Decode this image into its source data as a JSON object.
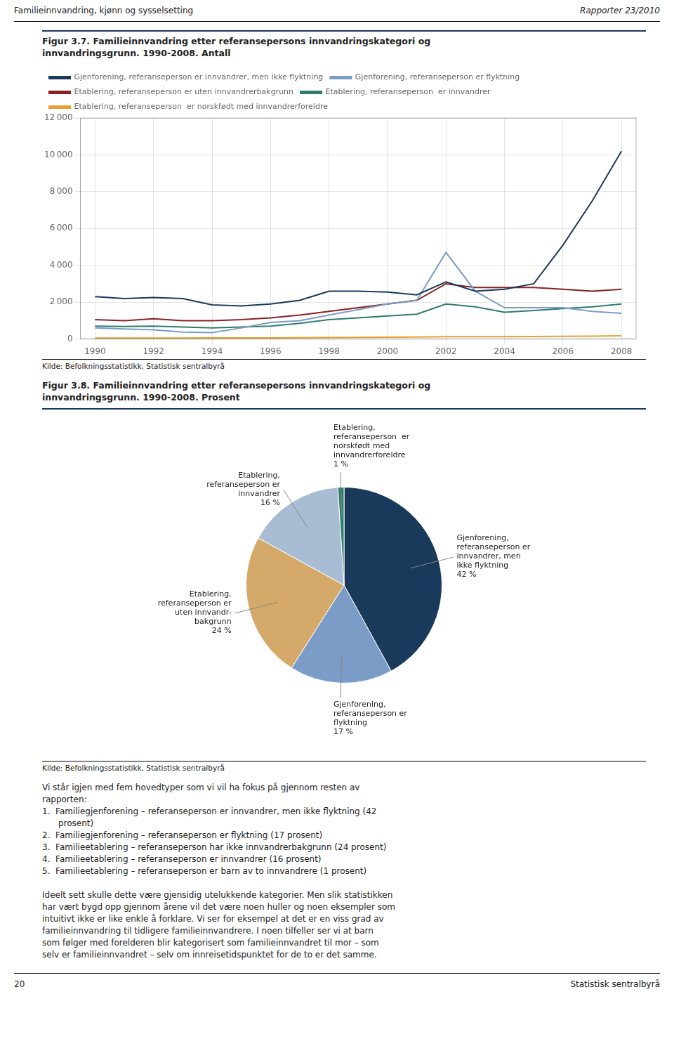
{
  "chart_data": [
    {
      "type": "line",
      "title": "Figur 3.7. Familieinnvandring etter referansepersons innvandringskategori og\ninnvandringsgrunn. 1990-2008. Antall",
      "x": [
        1990,
        1991,
        1992,
        1993,
        1994,
        1995,
        1996,
        1997,
        1998,
        1999,
        2000,
        2001,
        2002,
        2003,
        2004,
        2005,
        2006,
        2007,
        2008
      ],
      "series": [
        {
          "name": "Gjenforening, referanseperson er innvandrer, men ikke flyktning",
          "color": "#1a3a5c",
          "values": [
            2300,
            2200,
            2250,
            2200,
            1850,
            1800,
            1900,
            2100,
            2600,
            2600,
            2550,
            2400,
            3100,
            2600,
            2700,
            3000,
            5100,
            7500,
            10200
          ]
        },
        {
          "name": "Gjenforening, referanseperson er flyktning",
          "color": "#7b9cc7",
          "values": [
            600,
            550,
            500,
            380,
            350,
            600,
            900,
            1000,
            1300,
            1600,
            1900,
            2100,
            4700,
            2600,
            1700,
            1700,
            1700,
            1500,
            1400
          ]
        },
        {
          "name": "Etablering, referanseperson er uten innvandrerbakgrunn",
          "color": "#8b2020",
          "values": [
            1050,
            1000,
            1100,
            1000,
            1000,
            1050,
            1150,
            1300,
            1500,
            1700,
            1900,
            2100,
            3000,
            2800,
            2800,
            2800,
            2700,
            2600,
            2700
          ]
        },
        {
          "name": "Etablering, referanseperson  er innvandrer",
          "color": "#2e7d6e",
          "values": [
            700,
            680,
            700,
            650,
            600,
            650,
            700,
            850,
            1050,
            1150,
            1250,
            1350,
            1900,
            1750,
            1450,
            1550,
            1650,
            1750,
            1900
          ]
        },
        {
          "name": "Etablering, referanseperson  er norskfødt med innvandrerforeldre",
          "color": "#e8a030",
          "values": [
            50,
            55,
            55,
            55,
            60,
            60,
            65,
            70,
            80,
            90,
            100,
            110,
            130,
            130,
            130,
            140,
            150,
            160,
            180
          ]
        }
      ],
      "xlim": [
        1989.5,
        2008.5
      ],
      "xticks": [
        1990,
        1992,
        1994,
        1996,
        1998,
        2000,
        2002,
        2004,
        2006,
        2008
      ],
      "ylim": [
        0,
        12000
      ],
      "yticks": [
        0,
        {
          "value": 2000,
          "label": "2 000"
        },
        {
          "value": 4000,
          "label": "4 000"
        },
        {
          "value": 6000,
          "label": "6 000"
        },
        {
          "value": 8000,
          "label": "8 000"
        },
        {
          "value": 10000,
          "label": "10 000"
        },
        {
          "value": 12000,
          "label": "12 000"
        }
      ],
      "grid": true,
      "legend": "upper left",
      "annotations": [
        "Familieinnvandring, kjønn og sysselsetting",
        "Rapporter 23/2010",
        "Kilde: Befolkningsstatistikk, Statistisk sentralbyrå"
      ]
    },
    {
      "type": "pie",
      "title": "Figur 3.8. Familieinnvandring etter referansepersons innvandringskategori og\ninnvandringsgrunn. 1990-2008. Prosent",
      "categories": [
        "Gjenforening,\nreferanseperson er\ninnvandrer, men\nikke flyktning",
        "Gjenforening,\nreferanseperson er\nflyktning",
        "Etablering,\nreferanseperson er\nuten innvandr-\nbakgrunn",
        "Etablering,\nreferanseperson er\ninnvandrer",
        "Etablering,\nreferanseperson  er\nnorskfødt med\ninnvandrerforeldre"
      ],
      "values": [
        42,
        17,
        24,
        16,
        1
      ],
      "value_labels": [
        "42 %",
        "17 %",
        "24 %",
        "16 %",
        "1 %"
      ],
      "colors": [
        "#1a3a5c",
        "#7b9cc7",
        "#d4a96a",
        "#a8bdd4",
        "#2e7d6e"
      ],
      "data_labels": true,
      "annotations": [
        "Kilde: Befolkningsstatistikk, Statistisk sentralbyrå",
        "Vi står igjen med fem hovedtyper som vi vil ha fokus på gjennom resten av\nrapporten:\n1.  Familiegjenforening – referanseperson er innvandrer, men ikke flyktning (42\n      prosent)\n2.  Familiegjenforening – referanseperson er flyktning (17 prosent)\n3.  Familieetablering – referanseperson har ikke innvandrerbakgrunn (24 prosent)\n4.  Familieetablering – referanseperson er innvandrer (16 prosent)\n5.  Familieetablering – referanseperson er barn av to innvandrere (1 prosent)\n\nIdeelt sett skulle dette være gjensidig utelukkende kategorier. Men slik statistikken\nhar vært bygd opp gjennom årene vil det være noen huller og noen eksempler som\nintuitivt ikke er like enkle å forklare. Vi ser for eksempel at det er en viss grad av\nfamilieinnvandring til tidligere familieinnvandrere. I noen tilfeller ser vi at barn\nsom følger med forelderen blir kategorisert som familieinnvandret til mor – som\nselv er familieinnvandret – selv om innreisetidspunktet for de to er det samme.",
        "20",
        "Statistisk sentralbyrå"
      ]
    }
  ]
}
